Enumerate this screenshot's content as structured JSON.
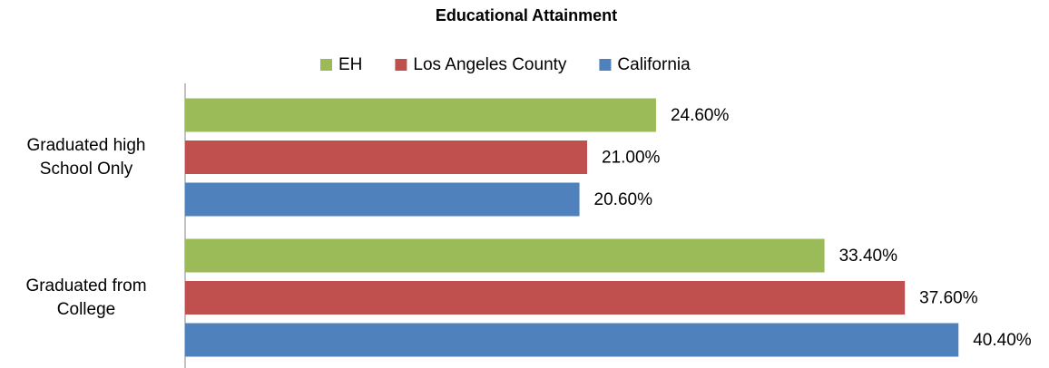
{
  "chart_data": {
    "type": "bar",
    "orientation": "horizontal",
    "title": "Educational Attainment",
    "categories": [
      "Graduated high School Only",
      "Graduated from College"
    ],
    "series": [
      {
        "name": "EH",
        "color": "#9bbb59",
        "values": [
          24.6,
          33.4
        ],
        "value_labels": [
          "24.60%",
          "33.40%"
        ]
      },
      {
        "name": "Los Angeles County",
        "color": "#c0504d",
        "values": [
          21.0,
          37.6
        ],
        "value_labels": [
          "21.00%",
          "37.60%"
        ]
      },
      {
        "name": "California",
        "color": "#4f81bd",
        "values": [
          20.6,
          40.4
        ],
        "value_labels": [
          "20.60%",
          "40.40%"
        ]
      }
    ],
    "xlim": [
      0,
      42
    ],
    "legend": "top"
  }
}
